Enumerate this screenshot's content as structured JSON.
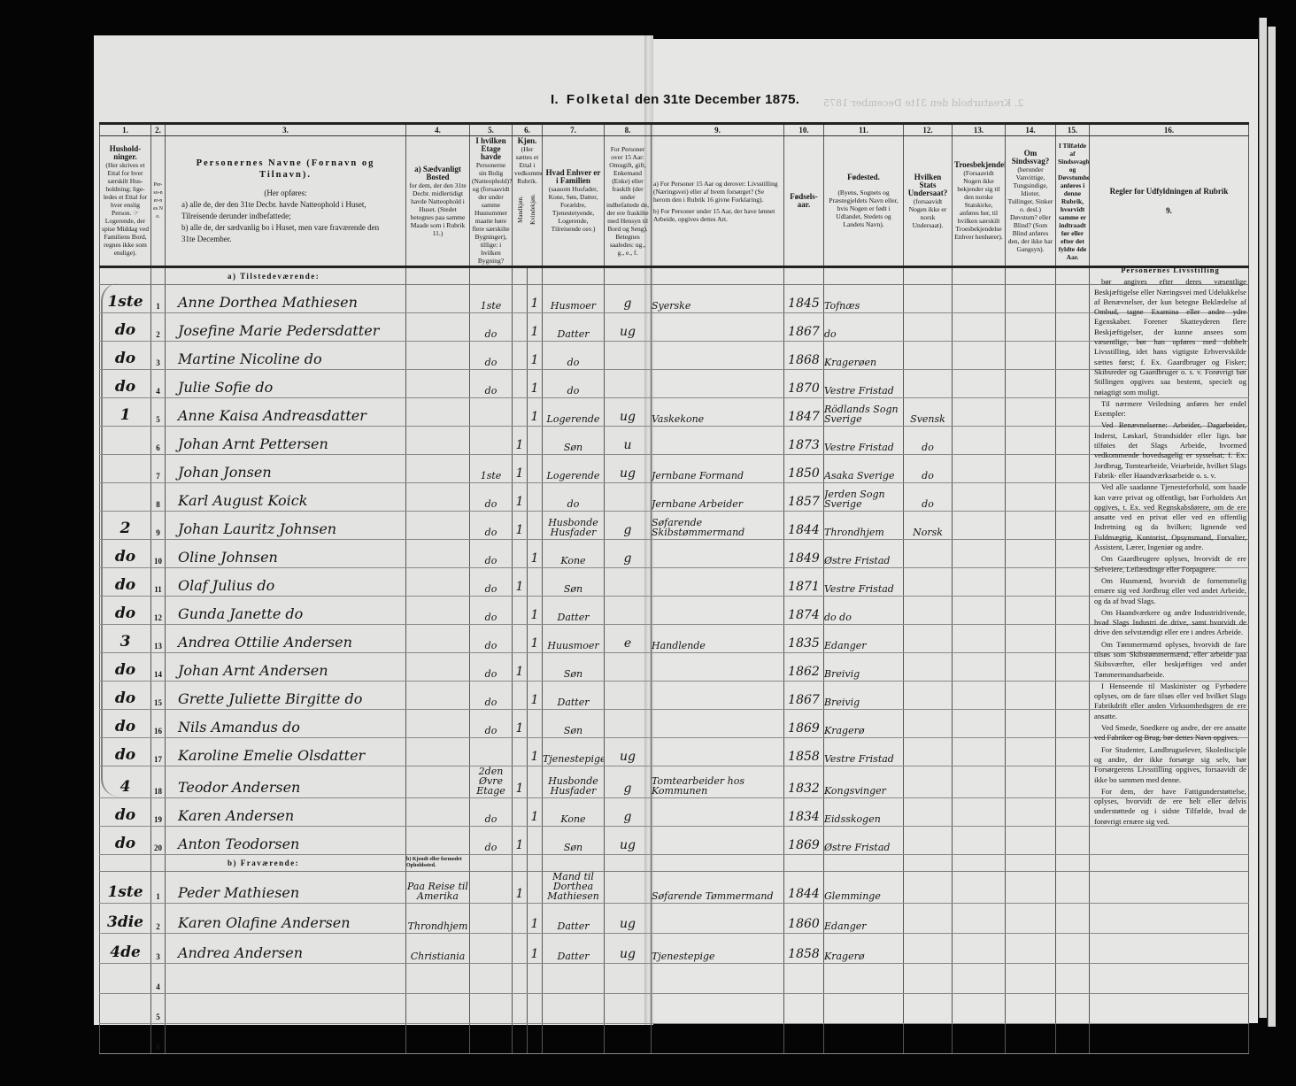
{
  "title": {
    "prefix": "I.",
    "word": "Folketal",
    "rest": "den 31te December 1875."
  },
  "ghost_text": "2. Kreaturhold den 31te December 1875",
  "column_numbers": [
    "1.",
    "2.",
    "3.",
    "4.",
    "5.",
    "6.",
    "7.",
    "8.",
    "9.",
    "10.",
    "11.",
    "12.",
    "13.",
    "14.",
    "15.",
    "16."
  ],
  "headers": {
    "c1_title": "Hushold-ninger.",
    "c1_text": "(Her skrives et Ettal for hver særskilt Hus-holdning; lige-ledes et Ettal for hver enslig Person. ☞ Logerende, der spise Middag ved Familiens Bord, regnes ikke som enslige).",
    "c2": "Per-so-ner-nes No.",
    "c3_title": "Personernes Navne (Fornavn og Tilnavn).",
    "c3_intro": "(Her opføres:",
    "c3_a": "a) alle de, der den 31te Decbr. havde Natteophold i Huset, Tilreisende derunder indbefattede;",
    "c3_b": "b) alle de, der sædvanlig bo i Huset, men vare fraværende den 31te December.",
    "c4_title": "a) Sædvanligt Bosted",
    "c4_text": "for dem, der den 31te Decbr. midlertidigt havde Natteophold i Huset. (Stedet betegnes paa samme Maade som i Rubrik 11.)",
    "c5_title": "I hvilken Etage havde",
    "c5_text": "Personerne sin Bolig (Natteophold)? og (forsaavidt der under samme Husnummer maatte høre flere særskilte Bygninger), tillige: i hvilken Bygning?",
    "c6_title": "Kjøn.",
    "c6_text": "(Her sættes et Ettal i vedkommende Rubrik.",
    "c6_m": "Mandkjøn.",
    "c6_f": "Kvindekjøn.",
    "c7_title": "Hvad Enhver er i Familien",
    "c7_text": "(saasom Husfader, Kone, Søn, Datter, Forældre, Tjenestetyende, Logerende, Tilreisende osv.)",
    "c8_text": "For Personer over 15 Aar: Omugift, gift, Enkemand (Enke) eller fraskilt (der under indbefattede de, der ere fraskilte med Hensyn til Bord og Seng). Betegnes saaledes: ug., g., e., f.",
    "c9_a": "a) For Personer 15 Aar og derover: Livsstilling (Næringsvei) eller af hvem forsørget? (Se herom den i Rubrik 16 givne Forklaring).",
    "c9_b": "b) For Personer under 15 Aar, der have lønnet Arbeide, opgives dettes Art.",
    "c10": "Fødsels-aar.",
    "c11_title": "Fødested.",
    "c11_text": "(Byens, Sognets og Præstegjeldets Navn eller, hvis Nogen er født i Udlandet, Stedets og Landets Navn).",
    "c12_title": "Hvilken Stats Undersaat?",
    "c12_text": "(forsaavidt Nogen ikke er norsk Undersaat).",
    "c13_title": "Troesbekjendelse.",
    "c13_text": "(Forsaavidt Nogen ikke bekjender sig til den norske Statskirke, anføres her, til hvilken særskilt Troesbekjendelse Enhver henhører).",
    "c14_title": "Om Sindssvag?",
    "c14_text": "(herunder Vanvittige, Tungsindige, Idioter, Tullinger, Sinker o. desl.) Døvstum? eller Blind? (Som Blind anføres den, der ikke har Gangsyn).",
    "c15": "I Tilfælde af Sindssvaghed og Døvstumhed anføres i denne Rubrik, hvorvidt samme er indtraadt før eller efter det fyldte 4de Aar.",
    "c16": "Regler for Udfyldningen af Rubrik 9."
  },
  "sections": {
    "present": "a) Tilstedeværende:",
    "absent": "b) Fraværende:",
    "absent_c4": "b) Kjendt eller formodet Opholdssted."
  },
  "present_rows": [
    {
      "hh": "1ste",
      "no": "1",
      "name": "Anne Dorthea Mathiesen",
      "c4": "",
      "etage": "1ste",
      "m": "",
      "f": "1",
      "fam": "Husmoer",
      "civ": "g",
      "occ": "Syerske",
      "year": "1845",
      "place": "Tofnæs",
      "nat": ""
    },
    {
      "hh": "do",
      "no": "2",
      "name": "Josefine Marie Pedersdatter",
      "c4": "",
      "etage": "do",
      "m": "",
      "f": "1",
      "fam": "Datter",
      "civ": "ug",
      "occ": "",
      "year": "1867",
      "place": "do",
      "nat": ""
    },
    {
      "hh": "do",
      "no": "3",
      "name": "Martine Nicoline do",
      "c4": "",
      "etage": "do",
      "m": "",
      "f": "1",
      "fam": "do",
      "civ": "",
      "occ": "",
      "year": "1868",
      "place": "Kragerøen",
      "nat": ""
    },
    {
      "hh": "do",
      "no": "4",
      "name": "Julie Sofie do",
      "c4": "",
      "etage": "do",
      "m": "",
      "f": "1",
      "fam": "do",
      "civ": "",
      "occ": "",
      "year": "1870",
      "place": "Vestre Fristad",
      "nat": ""
    },
    {
      "hh": "1",
      "no": "5",
      "name": "Anne Kaisa Andreasdatter",
      "c4": "",
      "etage": "",
      "m": "",
      "f": "1",
      "fam": "Logerende",
      "civ": "ug",
      "occ": "Vaskekone",
      "year": "1847",
      "place": "Rödlands Sogn Sverige",
      "nat": "Svensk"
    },
    {
      "hh": "",
      "no": "6",
      "name": "Johan Arnt Pettersen",
      "c4": "",
      "etage": "",
      "m": "1",
      "f": "",
      "fam": "Søn",
      "civ": "u",
      "occ": "",
      "year": "1873",
      "place": "Vestre Fristad",
      "nat": "do"
    },
    {
      "hh": "",
      "no": "7",
      "name": "Johan Jonsen",
      "c4": "",
      "etage": "1ste",
      "m": "1",
      "f": "",
      "fam": "Logerende",
      "civ": "ug",
      "occ": "Jernbane Formand",
      "year": "1850",
      "place": "Asaka Sverige",
      "nat": "do"
    },
    {
      "hh": "",
      "no": "8",
      "name": "Karl August Koick",
      "c4": "",
      "etage": "do",
      "m": "1",
      "f": "",
      "fam": "do",
      "civ": "",
      "occ": "Jernbane Arbeider",
      "year": "1857",
      "place": "Jerden Sogn Sverige",
      "nat": "do"
    },
    {
      "hh": "2",
      "no": "9",
      "name": "Johan Lauritz Johnsen",
      "c4": "",
      "etage": "do",
      "m": "1",
      "f": "",
      "fam": "Husbonde Husfader",
      "civ": "g",
      "occ": "Søfarende Skibstømmermand",
      "year": "1844",
      "place": "Throndhjem",
      "nat": "Norsk"
    },
    {
      "hh": "do",
      "no": "10",
      "name": "Oline Johnsen",
      "c4": "",
      "etage": "do",
      "m": "",
      "f": "1",
      "fam": "Kone",
      "civ": "g",
      "occ": "",
      "year": "1849",
      "place": "Østre Fristad",
      "nat": ""
    },
    {
      "hh": "do",
      "no": "11",
      "name": "Olaf Julius do",
      "c4": "",
      "etage": "do",
      "m": "1",
      "f": "",
      "fam": "Søn",
      "civ": "",
      "occ": "",
      "year": "1871",
      "place": "Vestre Fristad",
      "nat": ""
    },
    {
      "hh": "do",
      "no": "12",
      "name": "Gunda Janette do",
      "c4": "",
      "etage": "do",
      "m": "",
      "f": "1",
      "fam": "Datter",
      "civ": "",
      "occ": "",
      "year": "1874",
      "place": "do do",
      "nat": ""
    },
    {
      "hh": "3",
      "no": "13",
      "name": "Andrea Ottilie Andersen",
      "c4": "",
      "etage": "do",
      "m": "",
      "f": "1",
      "fam": "Huusmoer",
      "civ": "e",
      "occ": "Handlende",
      "year": "1835",
      "place": "Edanger",
      "nat": ""
    },
    {
      "hh": "do",
      "no": "14",
      "name": "Johan Arnt Andersen",
      "c4": "",
      "etage": "do",
      "m": "1",
      "f": "",
      "fam": "Søn",
      "civ": "",
      "occ": "",
      "year": "1862",
      "place": "Breivig",
      "nat": ""
    },
    {
      "hh": "do",
      "no": "15",
      "name": "Grette Juliette Birgitte do",
      "c4": "",
      "etage": "do",
      "m": "",
      "f": "1",
      "fam": "Datter",
      "civ": "",
      "occ": "",
      "year": "1867",
      "place": "Breivig",
      "nat": ""
    },
    {
      "hh": "do",
      "no": "16",
      "name": "Nils Amandus do",
      "c4": "",
      "etage": "do",
      "m": "1",
      "f": "",
      "fam": "Søn",
      "civ": "",
      "occ": "",
      "year": "1869",
      "place": "Kragerø",
      "nat": ""
    },
    {
      "hh": "do",
      "no": "17",
      "name": "Karoline Emelie Olsdatter",
      "c4": "",
      "etage": "",
      "m": "",
      "f": "1",
      "fam": "Tjenestepige",
      "civ": "ug",
      "occ": "",
      "year": "1858",
      "place": "Vestre Fristad",
      "nat": ""
    },
    {
      "hh": "4",
      "no": "18",
      "name": "Teodor Andersen",
      "c4": "",
      "etage": "2den Øvre Etage",
      "m": "1",
      "f": "",
      "fam": "Husbonde Husfader",
      "civ": "g",
      "occ": "Tomtearbeider hos Kommunen",
      "year": "1832",
      "place": "Kongsvinger",
      "nat": ""
    },
    {
      "hh": "do",
      "no": "19",
      "name": "Karen Andersen",
      "c4": "",
      "etage": "do",
      "m": "",
      "f": "1",
      "fam": "Kone",
      "civ": "g",
      "occ": "",
      "year": "1834",
      "place": "Eidsskogen",
      "nat": ""
    },
    {
      "hh": "do",
      "no": "20",
      "name": "Anton Teodorsen",
      "c4": "",
      "etage": "do",
      "m": "1",
      "f": "",
      "fam": "Søn",
      "civ": "ug",
      "occ": "",
      "year": "1869",
      "place": "Østre Fristad",
      "nat": ""
    }
  ],
  "absent_rows": [
    {
      "hh": "1ste",
      "no": "1",
      "name": "Peder Mathiesen",
      "c4": "Paa Reise til Amerika",
      "etage": "",
      "m": "1",
      "f": "",
      "fam": "Mand til Dorthea Mathiesen",
      "civ": "",
      "occ": "Søfarende Tømmermand",
      "year": "1844",
      "place": "Glemminge",
      "nat": ""
    },
    {
      "hh": "3die",
      "no": "2",
      "name": "Karen Olafine Andersen",
      "c4": "Throndhjem",
      "etage": "",
      "m": "",
      "f": "1",
      "fam": "Datter",
      "civ": "ug",
      "occ": "",
      "year": "1860",
      "place": "Edanger",
      "nat": ""
    },
    {
      "hh": "4de",
      "no": "3",
      "name": "Andrea Andersen",
      "c4": "Christiania",
      "etage": "",
      "m": "",
      "f": "1",
      "fam": "Datter",
      "civ": "ug",
      "occ": "Tjenestepige",
      "year": "1858",
      "place": "Kragerø",
      "nat": ""
    },
    {
      "hh": "",
      "no": "4",
      "name": "",
      "c4": "",
      "etage": "",
      "m": "",
      "f": "",
      "fam": "",
      "civ": "",
      "occ": "",
      "year": "",
      "place": "",
      "nat": ""
    },
    {
      "hh": "",
      "no": "5",
      "name": "",
      "c4": "",
      "etage": "",
      "m": "",
      "f": "",
      "fam": "",
      "civ": "",
      "occ": "",
      "year": "",
      "place": "",
      "nat": ""
    },
    {
      "hh": "",
      "no": "6",
      "name": "",
      "c4": "",
      "etage": "",
      "m": "",
      "f": "",
      "fam": "",
      "civ": "",
      "occ": "",
      "year": "",
      "place": "",
      "nat": ""
    }
  ],
  "rules_col16": [
    "Personernes Livsstilling",
    "bør angives efter deres væsentlige Beskjæftigelse eller Næringsvei med Udelukkelse af Benævnelser, der kun betegne Beklædelse af Ombud, tagne Examina eller andre ydre Egenskaber. Forener Skatteyderen flere Beskjæftigelser, der kunne ansees som væsentlige, bør han opføres med dobbelt Livsstilling, idet hans vigtigste Erhvervskilde sættes først; f. Ex. Gaardbruger og Fisker; Skibsreder og Gaardbruger o. s. v. Forøvrigt bør Stillingen opgives saa bestemt, specielt og nøiagtigt som muligt.",
    "Til nærmere Veiledning anføres her endel Exempler:",
    "Ved Benævnelserne: Arbeider, Dagarbeider, Inderst, Løskarl, Strandsidder eller lign. bør tilføies det Slags Arbeide, hvormed vedkommende hovedsagelig er sysselsat; f. Ex. Jordbrug, Tomtearbeide, Veiarbeide, hvilket Slags Fabrik- eller Haandværksarbeide o. s. v.",
    "Ved alle saadanne Tjenesteforhold, som baade kan være privat og offentligt, bør Forholdets Art opgives, t. Ex. ved Regnskabsførere, om de ere ansatte ved en privat eller ved en offentlig Indretning og da hvilken; lignende ved Fuldmægtig, Kontorist, Opsynsmand, Forvalter, Assistent, Lærer, Ingeniør og andre.",
    "Om Gaardbrugere oplyses, hvorvidt de ere Selveiere, Leilændinge eller Forpagtere.",
    "Om Husmænd, hvorvidt de fornemmelig ernære sig ved Jordbrug eller ved andet Arbeide, og da af hvad Slags.",
    "Om Haandværkere og andre Industridrivende, hvad Slags Industri de drive, samt hvorvidt de drive den selvstændigt eller ere i andres Arbeide.",
    "Om Tømmermænd oplyses, hvorvidt de fare tilsøs som Skibstømmermænd, eller arbeide paa Skibsværfter, eller beskjæftiges ved andet Tømmermandsarbeide.",
    "I Henseende til Maskinister og Fyrbødere oplyses, om de fare tilsøs eller ved hvilket Slags Fabrikdrift eller anden Virksomhedsgren de ere ansatte.",
    "Ved Smede, Snedkere og andre, der ere ansatte ved Fabriker og Brug, bør dettes Navn opgives.",
    "For Studenter, Landbrugselever, Skoledisciple og andre, der ikke forsørge sig selv, bør Forsørgerens Livsstilling opgives, forsaavidt de ikke bo sammen med denne.",
    "For dem, der have Fattigunderstøttelse, oplyses, hvorvidt de ere helt eller delvis understøttede og i sidste Tilfælde, hvad de forøvrigt ernære sig ved."
  ]
}
